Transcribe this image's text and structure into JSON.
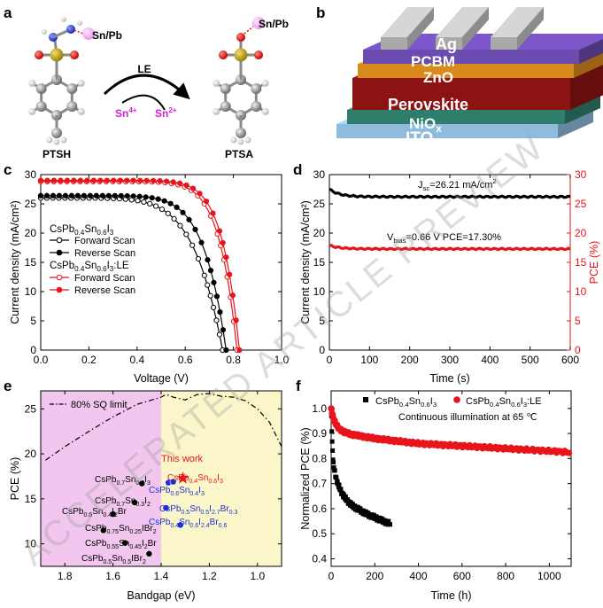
{
  "panel_labels": [
    "a",
    "b",
    "c",
    "d",
    "e",
    "f"
  ],
  "watermark": "ACCELERATED ARTICLE PREVIEW",
  "panel_a": {
    "left_label": "PTSH",
    "right_label": "PTSA",
    "arrow_label": "LE",
    "metal_left": "Sn/Pb",
    "metal_right": "Sn/Pb",
    "ion_in": "Sn",
    "ion_in_charge": "4+",
    "ion_out": "Sn",
    "ion_out_charge": "2+"
  },
  "panel_b": {
    "layers": [
      {
        "name": "Ag",
        "color": "#b9b9b9"
      },
      {
        "name": "PCBM",
        "color": "#6c4bb0"
      },
      {
        "name": "ZnO",
        "color": "#d88a1d"
      },
      {
        "name": "Perovskite",
        "color": "#8d1212"
      },
      {
        "name": "NiO",
        "sub": "x",
        "color": "#2f7d6b"
      },
      {
        "name": "ITO",
        "color": "#8fbcdc"
      }
    ]
  },
  "chart_data": [
    {
      "id": "c",
      "type": "line",
      "xlabel": "Voltage (V)",
      "ylabel": "Current density (mA/cm²)",
      "xlim": [
        0,
        1.0
      ],
      "ylim": [
        0,
        30
      ],
      "xticks": [
        "0.0",
        "0.2",
        "0.4",
        "0.6",
        "0.8",
        "1.0"
      ],
      "yticks": [
        "0",
        "5",
        "10",
        "15",
        "20",
        "25",
        "30"
      ],
      "legend": {
        "group1": {
          "base": "CsPb",
          "s1": "0.4",
          "mid": "Sn",
          "s2": "0.6",
          "end": "I",
          "s3": "3",
          "suffix": ""
        },
        "group2": {
          "base": "CsPb",
          "s1": "0.4",
          "mid": "Sn",
          "s2": "0.6",
          "end": "I",
          "s3": "3",
          "suffix": ":LE"
        },
        "items": [
          "Forward Scan",
          "Reverse Scan",
          "Forward Scan",
          "Reverse Scan"
        ]
      },
      "series": [
        {
          "name": "CsPb0.4Sn0.6I3 Forward Scan",
          "color": "#000000",
          "marker": "open",
          "jsc": 26.0,
          "voc": 0.755,
          "n": 2.6
        },
        {
          "name": "CsPb0.4Sn0.6I3 Reverse Scan",
          "color": "#000000",
          "marker": "filled",
          "jsc": 26.4,
          "voc": 0.77,
          "n": 2.0
        },
        {
          "name": "CsPb0.4Sn0.6I3:LE Forward Scan",
          "color": "#e8141c",
          "marker": "open",
          "jsc": 28.8,
          "voc": 0.815,
          "n": 1.5
        },
        {
          "name": "CsPb0.4Sn0.6I3:LE Reverse Scan",
          "color": "#e8141c",
          "marker": "filled",
          "jsc": 29.0,
          "voc": 0.825,
          "n": 1.45
        }
      ]
    },
    {
      "id": "d",
      "type": "line",
      "xlabel": "Time (s)",
      "ylabel": "Current density (mA/cm²)",
      "ylabel_right": "PCE (%)",
      "xlim": [
        0,
        600
      ],
      "ylim": [
        0,
        30
      ],
      "ylim_right": [
        0,
        30
      ],
      "xticks": [
        "0",
        "100",
        "200",
        "300",
        "400",
        "500",
        "600"
      ],
      "yticks": [
        "0",
        "5",
        "10",
        "15",
        "20",
        "25",
        "30"
      ],
      "annotations": {
        "jsc": {
          "sym": "J",
          "sub": "sc",
          "val": "=26.21 mA/cm",
          "sup": "2"
        },
        "vbias": {
          "sym": "V",
          "sub": "bias",
          "val": "=0.66 V PCE=17.30%"
        }
      },
      "series": [
        {
          "name": "Current density",
          "color": "#000000",
          "start": 27.5,
          "steady": 26.21
        },
        {
          "name": "PCE",
          "color": "#e8141c",
          "start": 17.9,
          "steady": 17.3
        }
      ]
    },
    {
      "id": "e",
      "type": "scatter",
      "xlabel": "Bandgap (eV)",
      "ylabel": "PCE (%)",
      "xlim": [
        1.9,
        0.9
      ],
      "ylim": [
        7.5,
        27
      ],
      "xticks": [
        "1.8",
        "1.6",
        "1.4",
        "1.2",
        "1.0"
      ],
      "yticks": [
        "10",
        "15",
        "20",
        "25"
      ],
      "legend": "80% SQ limit",
      "annotation": "This work",
      "regions": [
        {
          "from": 1.9,
          "to": 1.4,
          "color": "#f2c6ef"
        },
        {
          "from": 1.4,
          "to": 0.9,
          "color": "#fbf6c9"
        }
      ],
      "sq_limit": {
        "x": [
          1.88,
          1.8,
          1.7,
          1.6,
          1.5,
          1.4,
          1.38,
          1.35,
          1.3,
          1.25,
          1.2,
          1.15,
          1.1,
          1.05,
          1.0,
          0.95,
          0.9
        ],
        "y": [
          19.3,
          20.8,
          22.5,
          24.1,
          25.5,
          26.3,
          26.6,
          26.3,
          26.0,
          26.6,
          26.7,
          26.4,
          26.3,
          25.9,
          25.0,
          23.5,
          20.8
        ]
      },
      "points": [
        {
          "x": 1.48,
          "y": 16.7,
          "color": "#000000",
          "label": [
            [
              "CsPb",
              ""
            ],
            [
              "0.7",
              "sub"
            ],
            [
              "Sn",
              ""
            ],
            [
              "0.3",
              "sub"
            ],
            [
              "I",
              ""
            ],
            [
              "3",
              "sub"
            ]
          ]
        },
        {
          "x": 1.37,
          "y": 16.8,
          "color": "#1f2fd2",
          "label": []
        },
        {
          "x": 1.35,
          "y": 16.9,
          "color": "#1f2fd2",
          "label": [
            [
              "CsPb",
              ""
            ],
            [
              "0.6",
              "sub"
            ],
            [
              "Sn",
              ""
            ],
            [
              "0.4",
              "sub"
            ],
            [
              "I",
              ""
            ],
            [
              "3",
              "sub"
            ]
          ]
        },
        {
          "x": 1.31,
          "y": 17.3,
          "color": "#e8141c",
          "star": true,
          "label": [
            [
              "CsPb",
              ""
            ],
            [
              "0.4",
              "sub"
            ],
            [
              "Sn",
              ""
            ],
            [
              "0.6",
              "sub"
            ],
            [
              "I",
              ""
            ],
            [
              "3",
              "sub"
            ]
          ]
        },
        {
          "x": 1.51,
          "y": 14.6,
          "color": "#000000",
          "label": [
            [
              "CsPb",
              ""
            ],
            [
              "0.7",
              "sub"
            ],
            [
              "Sn",
              ""
            ],
            [
              "0.3",
              "sub"
            ],
            [
              "I",
              ""
            ],
            [
              "2",
              "sub"
            ]
          ]
        },
        {
          "x": 1.38,
          "y": 14.0,
          "color": "#1f2fd2",
          "label": [
            [
              "CsPb",
              ""
            ],
            [
              "0.5",
              "sub"
            ],
            [
              "Sn",
              ""
            ],
            [
              "0.5",
              "sub"
            ],
            [
              "I",
              ""
            ],
            [
              "2.7",
              "sub"
            ],
            [
              "Br",
              ""
            ],
            [
              "0.3",
              "sub"
            ]
          ]
        },
        {
          "x": 1.6,
          "y": 13.3,
          "color": "#000000",
          "label": [
            [
              "CsPb",
              ""
            ],
            [
              "0.6",
              "sub"
            ],
            [
              "Sn",
              ""
            ],
            [
              "0.4",
              "sub"
            ],
            [
              "I",
              ""
            ],
            [
              "2",
              "sub"
            ],
            [
              "Br",
              ""
            ]
          ]
        },
        {
          "x": 1.32,
          "y": 12.1,
          "color": "#1f2fd2",
          "label": [
            [
              "CsPb",
              ""
            ],
            [
              "0.4",
              "sub"
            ],
            [
              "Sn",
              ""
            ],
            [
              "0.6",
              "sub"
            ],
            [
              "I",
              ""
            ],
            [
              "2.4",
              "sub"
            ],
            [
              "Br",
              ""
            ],
            [
              "0.6",
              "sub"
            ]
          ]
        },
        {
          "x": 1.64,
          "y": 11.5,
          "color": "#000000",
          "label": [
            [
              "CsPb",
              ""
            ],
            [
              "0.75",
              "sub"
            ],
            [
              "Sn",
              ""
            ],
            [
              "0.25",
              "sub"
            ],
            [
              "IBr",
              ""
            ],
            [
              "2",
              "sub"
            ]
          ]
        },
        {
          "x": 1.55,
          "y": 10.1,
          "color": "#000000",
          "label": [
            [
              "CsPb",
              ""
            ],
            [
              "0.55",
              "sub"
            ],
            [
              "Sn",
              ""
            ],
            [
              "0.45",
              "sub"
            ],
            [
              "I",
              ""
            ],
            [
              "2",
              "sub"
            ],
            [
              "Br",
              ""
            ]
          ]
        },
        {
          "x": 1.45,
          "y": 8.9,
          "color": "#000000",
          "label": [
            [
              "CsPb",
              ""
            ],
            [
              "0.5",
              "sub"
            ],
            [
              "Sn",
              ""
            ],
            [
              "0.5",
              "sub"
            ],
            [
              "IBr",
              ""
            ],
            [
              "2",
              "sub"
            ]
          ]
        }
      ]
    },
    {
      "id": "f",
      "type": "line",
      "xlabel": "Time (h)",
      "ylabel": "Normalized PCE (%)",
      "xlim": [
        0,
        1100
      ],
      "ylim": [
        0.37,
        1.07
      ],
      "xticks": [
        "0",
        "200",
        "400",
        "600",
        "800",
        "1000"
      ],
      "yticks": [
        "0.4",
        "0.5",
        "0.6",
        "0.7",
        "0.8",
        "0.9",
        "1.0"
      ],
      "legend": [
        {
          "base": "CsPb",
          "s1": "0.4",
          "mid": "Sn",
          "s2": "0.6",
          "end": "I",
          "s3": "3",
          "suffix": ""
        },
        {
          "base": "CsPb",
          "s1": "0.4",
          "mid": "Sn",
          "s2": "0.6",
          "end": "I",
          "s3": "3",
          "suffix": ":LE"
        }
      ],
      "annotation": "Continuous illumination at 65 ℃",
      "series": [
        {
          "name": "CsPb0.4Sn0.6I3",
          "color": "#000000",
          "marker": "square",
          "tmax": 270,
          "t": [
            0,
            5,
            10,
            20,
            30,
            50,
            75,
            100,
            130,
            160,
            200,
            240,
            270
          ],
          "y": [
            1.0,
            0.85,
            0.78,
            0.73,
            0.7,
            0.66,
            0.63,
            0.61,
            0.595,
            0.58,
            0.565,
            0.55,
            0.54
          ]
        },
        {
          "name": "CsPb0.4Sn0.6I3:LE",
          "color": "#e8141c",
          "marker": "circle",
          "tmax": 1090,
          "t": [
            0,
            5,
            10,
            20,
            35,
            60,
            100,
            200,
            300,
            400,
            500,
            600,
            700,
            800,
            900,
            1000,
            1090
          ],
          "y": [
            1.0,
            0.98,
            0.96,
            0.94,
            0.92,
            0.905,
            0.895,
            0.88,
            0.87,
            0.86,
            0.855,
            0.85,
            0.845,
            0.84,
            0.835,
            0.83,
            0.825
          ]
        }
      ]
    }
  ]
}
